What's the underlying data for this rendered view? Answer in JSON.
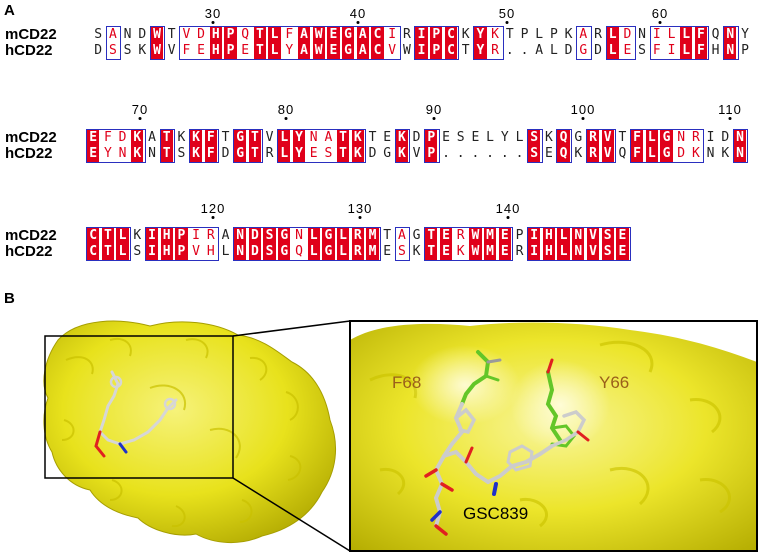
{
  "panels": {
    "a_label": "A",
    "b_label": "B"
  },
  "alignment": {
    "blocks": [
      {
        "ruler": [
          "30",
          "40",
          "50",
          "60"
        ],
        "rows": [
          {
            "name": "mCD22",
            "seq": "SANDWTVDHPQTLFAWEGACIRIPCKYKTPLPKARLDNILLFQNY"
          },
          {
            "name": "hCD22",
            "seq": "DSSKWVFEHPETLYAWEGACVWIPCTYR..ALDGDLESFILFHNP"
          }
        ]
      },
      {
        "ruler": [
          "70",
          "80",
          "90",
          "100",
          "110"
        ],
        "rows": [
          {
            "name": "mCD22",
            "seq": "EFDKATKKFTGTVLYNATKTEKDPESELYLSKQGRVTFLGNRIDN"
          },
          {
            "name": "hCD22",
            "seq": "EYNKNTSKFDGTRLYESTKDGKVP......SEQKRVQFLGDKNKN"
          }
        ]
      },
      {
        "ruler": [
          "120",
          "130",
          "140"
        ],
        "rows": [
          {
            "name": "mCD22",
            "seq": "CTLKIHPIRANDSGNLGLRMTAGTERWMEPIHLNVSE"
          },
          {
            "name": "hCD22",
            "seq": "CTLSIHPVHLNDSGQLGLRMESKTEKWMERIHLNVSE"
          }
        ]
      }
    ]
  },
  "structure": {
    "labels": {
      "f68": "F68",
      "y66": "Y66",
      "ligand": "GSC839"
    },
    "colors": {
      "surface": "#e8e21c",
      "surface_light": "#f4f06a",
      "surface_dark": "#b8b000",
      "residue": "#63c628",
      "label_residue": "#a0661c",
      "ligand_carbon": "#c9c9c9",
      "oxygen": "#e02020",
      "nitrogen": "#1f30c8"
    }
  }
}
